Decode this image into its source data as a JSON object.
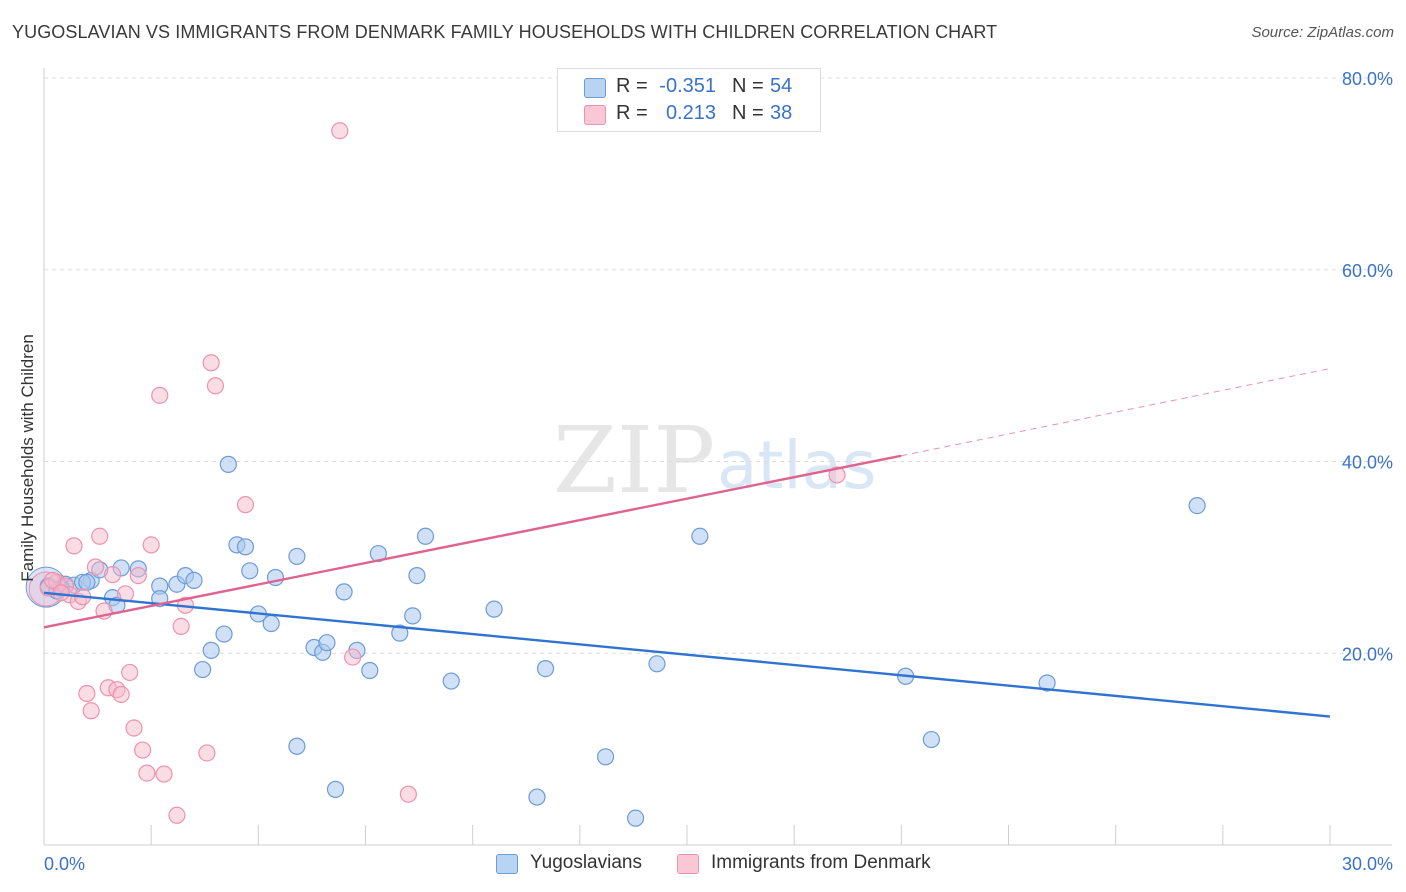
{
  "header": {
    "title": "YUGOSLAVIAN VS IMMIGRANTS FROM DENMARK FAMILY HOUSEHOLDS WITH CHILDREN CORRELATION CHART",
    "source": "Source: ZipAtlas.com"
  },
  "legend": {
    "series1": {
      "r_label": "R =",
      "r_value": "-0.351",
      "n_label": "N =",
      "n_value": "54"
    },
    "series2": {
      "r_label": "R =",
      "r_value": "0.213",
      "n_label": "N =",
      "n_value": "38"
    }
  },
  "colors": {
    "blue_fill": "#a9c8f0",
    "blue_stroke": "#6d9bd8",
    "blue_line": "#2f74d0",
    "pink_fill": "#f6b9cc",
    "pink_stroke": "#ee92ae",
    "pink_line": "#e0638e",
    "tick_label": "#3a72c8",
    "grid": "#dddddd"
  },
  "watermark": {
    "zip": "ZIP",
    "atlas": "atlas"
  },
  "chart_data": {
    "type": "scatter",
    "title": "YUGOSLAVIAN VS IMMIGRANTS FROM DENMARK FAMILY HOUSEHOLDS WITH CHILDREN CORRELATION CHART",
    "xlabel": "",
    "ylabel": "Family Households with Children",
    "xlim": [
      0,
      30
    ],
    "ylim": [
      0,
      80
    ],
    "x_tick_labels": [
      {
        "value": 0,
        "label": "0.0%"
      },
      {
        "value": 30,
        "label": "30.0%"
      }
    ],
    "y_tick_labels": [
      {
        "value": 20,
        "label": "20.0%"
      },
      {
        "value": 40,
        "label": "40.0%"
      },
      {
        "value": 60,
        "label": "60.0%"
      },
      {
        "value": 80,
        "label": "80.0%"
      }
    ],
    "series": [
      {
        "name": "Yugoslavians",
        "color": "blue",
        "points": [
          [
            0.1,
            27.0
          ],
          [
            0.3,
            26.5
          ],
          [
            0.5,
            27.2
          ],
          [
            0.7,
            27.1
          ],
          [
            1.1,
            27.6
          ],
          [
            1.3,
            28.7
          ],
          [
            1.6,
            25.8
          ],
          [
            1.8,
            28.9
          ],
          [
            2.2,
            28.8
          ],
          [
            2.7,
            27.0
          ],
          [
            3.1,
            27.2
          ],
          [
            3.3,
            28.1
          ],
          [
            3.5,
            27.6
          ],
          [
            4.2,
            22.0
          ],
          [
            3.7,
            18.3
          ],
          [
            3.9,
            20.3
          ],
          [
            4.3,
            39.7
          ],
          [
            4.5,
            31.3
          ],
          [
            4.7,
            31.1
          ],
          [
            4.8,
            28.6
          ],
          [
            5.0,
            24.1
          ],
          [
            5.3,
            23.1
          ],
          [
            5.4,
            27.9
          ],
          [
            5.9,
            30.1
          ],
          [
            6.3,
            20.6
          ],
          [
            6.5,
            20.1
          ],
          [
            6.6,
            21.1
          ],
          [
            7.0,
            26.4
          ],
          [
            7.3,
            20.3
          ],
          [
            7.6,
            18.2
          ],
          [
            7.8,
            30.4
          ],
          [
            8.3,
            22.1
          ],
          [
            8.6,
            23.9
          ],
          [
            8.7,
            28.1
          ],
          [
            8.9,
            32.2
          ],
          [
            5.9,
            10.3
          ],
          [
            6.8,
            5.8
          ],
          [
            9.5,
            17.1
          ],
          [
            10.5,
            24.6
          ],
          [
            11.5,
            5.0
          ],
          [
            11.7,
            18.4
          ],
          [
            13.1,
            9.2
          ],
          [
            13.8,
            2.8
          ],
          [
            14.3,
            18.9
          ],
          [
            15.3,
            32.2
          ],
          [
            20.1,
            17.6
          ],
          [
            20.7,
            11.0
          ],
          [
            23.4,
            16.9
          ],
          [
            26.9,
            35.4
          ],
          [
            1.7,
            25.0
          ],
          [
            0.9,
            27.4
          ],
          [
            2.7,
            25.7
          ],
          [
            1.0,
            27.4
          ],
          [
            0.4,
            26.8
          ]
        ]
      },
      {
        "name": "Immigrants from Denmark",
        "color": "pink",
        "points": [
          [
            0.1,
            26.8
          ],
          [
            0.3,
            27.4
          ],
          [
            0.5,
            27.0
          ],
          [
            0.6,
            26.1
          ],
          [
            0.7,
            31.2
          ],
          [
            0.8,
            25.4
          ],
          [
            0.9,
            25.9
          ],
          [
            1.0,
            15.8
          ],
          [
            1.1,
            14.0
          ],
          [
            1.2,
            29.0
          ],
          [
            1.3,
            32.2
          ],
          [
            1.4,
            24.4
          ],
          [
            1.5,
            16.4
          ],
          [
            1.6,
            28.2
          ],
          [
            1.7,
            16.2
          ],
          [
            1.8,
            15.7
          ],
          [
            1.9,
            26.2
          ],
          [
            2.0,
            18.0
          ],
          [
            2.1,
            12.2
          ],
          [
            2.2,
            28.1
          ],
          [
            2.3,
            9.9
          ],
          [
            2.4,
            7.5
          ],
          [
            2.5,
            31.3
          ],
          [
            2.7,
            46.9
          ],
          [
            2.8,
            7.4
          ],
          [
            3.1,
            3.1
          ],
          [
            3.2,
            22.8
          ],
          [
            3.3,
            25.0
          ],
          [
            3.8,
            9.6
          ],
          [
            3.9,
            50.3
          ],
          [
            4.0,
            47.9
          ],
          [
            4.7,
            35.5
          ],
          [
            6.9,
            74.5
          ],
          [
            7.2,
            19.6
          ],
          [
            8.5,
            5.3
          ],
          [
            18.5,
            38.6
          ],
          [
            0.2,
            27.6
          ],
          [
            0.4,
            26.3
          ]
        ]
      }
    ],
    "trendlines": [
      {
        "series": "Yugoslavians",
        "x0": 0,
        "y0": 26.3,
        "x1": 30,
        "y1": 13.4,
        "style": "solid"
      },
      {
        "series": "Immigrants from Denmark",
        "x0": 0,
        "y0": 22.7,
        "x1": 20,
        "y1": 40.6,
        "style": "solid"
      },
      {
        "series": "Immigrants from Denmark",
        "x0": 20,
        "y0": 40.6,
        "x1": 30,
        "y1": 49.7,
        "style": "dashed"
      }
    ],
    "legend": [
      "Yugoslavians",
      "Immigrants from Denmark"
    ],
    "legend_position": "top-center",
    "grid": true
  }
}
